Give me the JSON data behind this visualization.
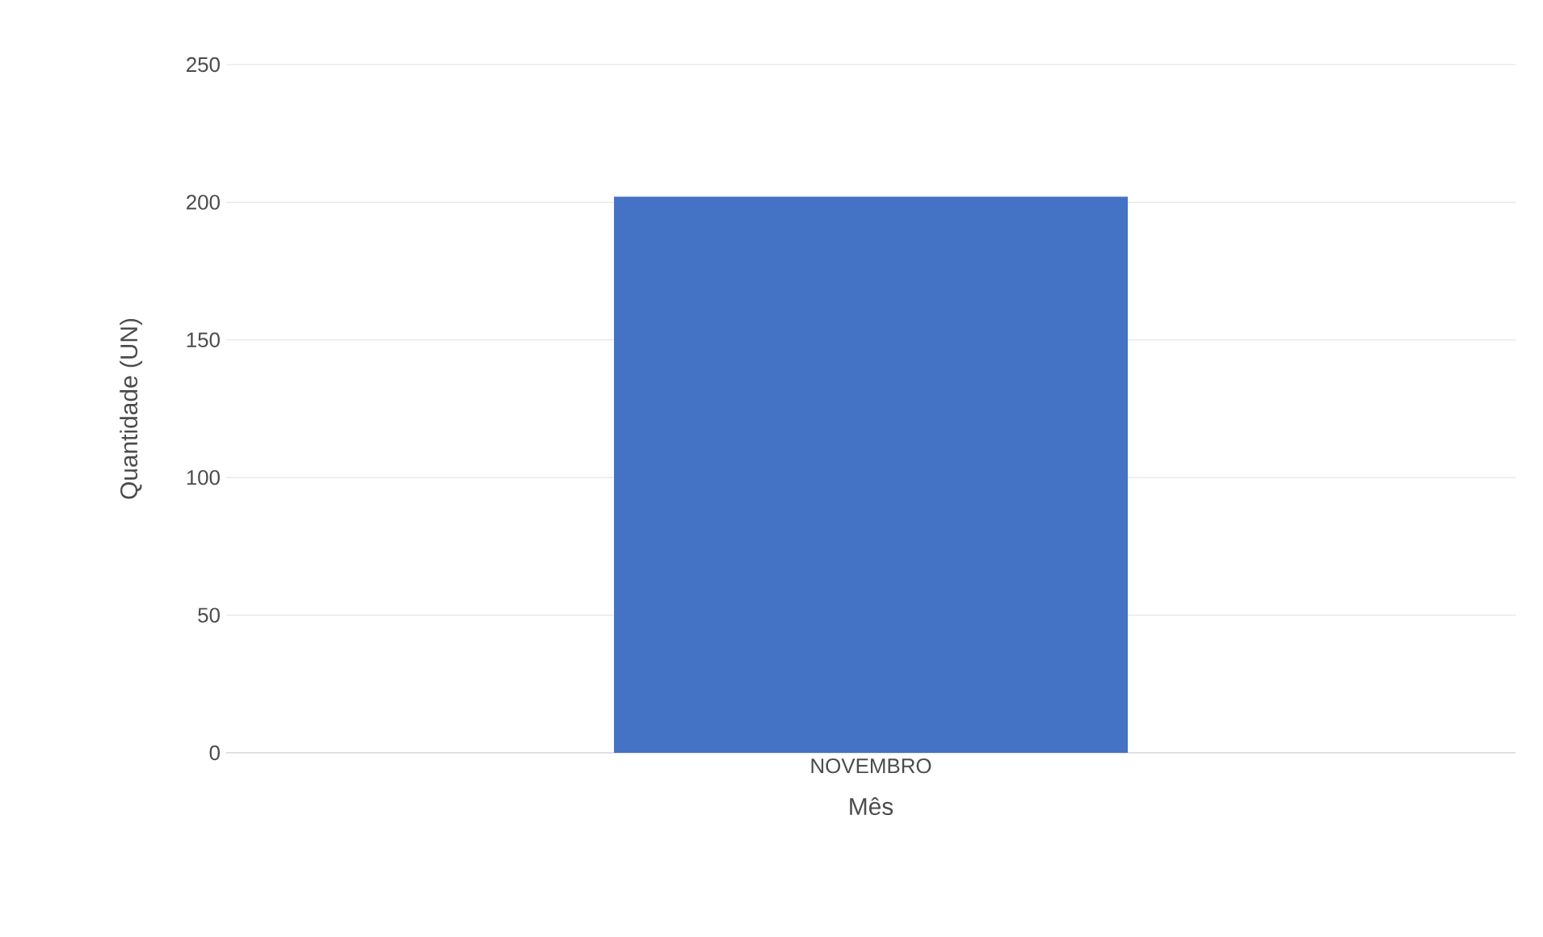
{
  "chart_data": {
    "type": "bar",
    "categories": [
      "NOVEMBRO"
    ],
    "values": [
      202
    ],
    "color": "#4472c4",
    "xlabel": "Mês",
    "ylabel": "Quantidade (UN)",
    "ylim": [
      0,
      250
    ],
    "yticks": [
      0,
      50,
      100,
      150,
      200,
      250
    ],
    "grid": "y"
  }
}
